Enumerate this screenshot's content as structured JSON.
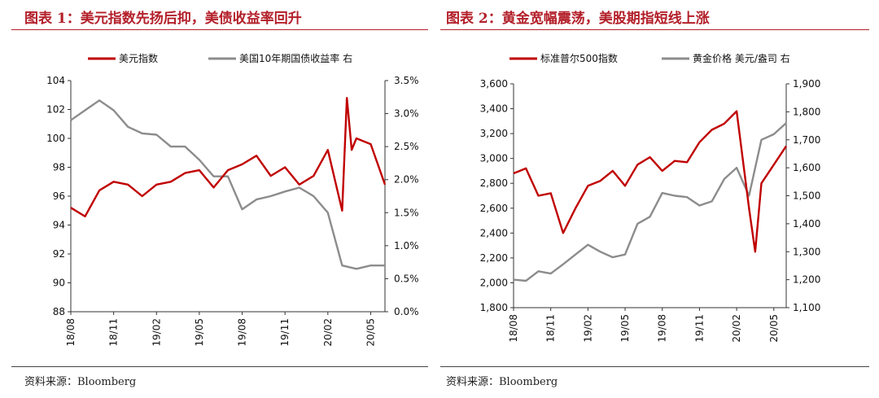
{
  "chart_data": [
    {
      "type": "line",
      "title": "图表 1：美元指数先扬后抑，美债收益率回升",
      "source": "资料来源：Bloomberg",
      "x_tick_labels": [
        "18/08",
        "18/11",
        "19/02",
        "19/05",
        "19/08",
        "19/11",
        "20/02",
        "20/05"
      ],
      "x_range": [
        "2018-08",
        "2020-06"
      ],
      "left_axis": {
        "ylim": [
          88,
          104
        ],
        "tick_labels": [
          "88",
          "90",
          "92",
          "94",
          "96",
          "98",
          "100",
          "102",
          "104"
        ]
      },
      "right_axis": {
        "ylim": [
          0,
          3.5
        ],
        "tick_labels": [
          "0.0%",
          "0.5%",
          "1.0%",
          "1.5%",
          "2.0%",
          "2.5%",
          "3.0%",
          "3.5%"
        ]
      },
      "legend_position": "top",
      "series": [
        {
          "name": "美元指数",
          "axis": "left",
          "color": "#c00000",
          "x": [
            "2018-08",
            "2018-09",
            "2018-10",
            "2018-11",
            "2018-12",
            "2019-01",
            "2019-02",
            "2019-03",
            "2019-04",
            "2019-05",
            "2019-06",
            "2019-07",
            "2019-08",
            "2019-09",
            "2019-10",
            "2019-11",
            "2019-12",
            "2020-01",
            "2020-02",
            "2020-03",
            "2020-03",
            "2020-03",
            "2020-04",
            "2020-05",
            "2020-06"
          ],
          "values": [
            95.2,
            94.6,
            96.4,
            97.0,
            96.8,
            96.0,
            96.8,
            97.0,
            97.6,
            97.8,
            96.6,
            97.8,
            98.2,
            98.8,
            97.4,
            98.0,
            96.8,
            97.4,
            99.2,
            95.0,
            102.8,
            99.2,
            100.0,
            99.6,
            96.8
          ]
        },
        {
          "name": "美国10年期国债收益率 右",
          "axis": "right",
          "color": "#8c8c8c",
          "x": [
            "2018-08",
            "2018-09",
            "2018-10",
            "2018-11",
            "2018-12",
            "2019-01",
            "2019-02",
            "2019-03",
            "2019-04",
            "2019-05",
            "2019-06",
            "2019-07",
            "2019-08",
            "2019-09",
            "2019-10",
            "2019-11",
            "2019-12",
            "2020-01",
            "2020-02",
            "2020-03",
            "2020-04",
            "2020-05",
            "2020-06"
          ],
          "values": [
            2.9,
            3.05,
            3.2,
            3.05,
            2.8,
            2.7,
            2.68,
            2.5,
            2.5,
            2.3,
            2.05,
            2.05,
            1.55,
            1.7,
            1.75,
            1.82,
            1.88,
            1.75,
            1.5,
            0.7,
            0.65,
            0.7,
            0.7
          ]
        }
      ]
    },
    {
      "type": "line",
      "title": "图表 2：黄金宽幅震荡，美股期指短线上涨",
      "source": "资料来源：Bloomberg",
      "x_tick_labels": [
        "18/08",
        "18/11",
        "19/02",
        "19/05",
        "19/08",
        "19/11",
        "20/02",
        "20/05"
      ],
      "x_range": [
        "2018-08",
        "2020-06"
      ],
      "left_axis": {
        "ylim": [
          1800,
          3600
        ],
        "tick_labels": [
          "1,800",
          "2,000",
          "2,200",
          "2,400",
          "2,600",
          "2,800",
          "3,000",
          "3,200",
          "3,400",
          "3,600"
        ]
      },
      "right_axis": {
        "ylim": [
          1100,
          1900
        ],
        "tick_labels": [
          "1,100",
          "1,200",
          "1,300",
          "1,400",
          "1,500",
          "1,600",
          "1,700",
          "1,800",
          "1,900"
        ]
      },
      "legend_position": "top",
      "series": [
        {
          "name": "标准普尔500指数",
          "axis": "left",
          "color": "#c00000",
          "x": [
            "2018-08",
            "2018-09",
            "2018-10",
            "2018-11",
            "2018-12",
            "2019-01",
            "2019-02",
            "2019-03",
            "2019-04",
            "2019-05",
            "2019-06",
            "2019-07",
            "2019-08",
            "2019-09",
            "2019-10",
            "2019-11",
            "2019-12",
            "2020-01",
            "2020-02",
            "2020-03",
            "2020-03",
            "2020-04",
            "2020-05",
            "2020-06"
          ],
          "values": [
            2880,
            2920,
            2700,
            2720,
            2400,
            2600,
            2780,
            2820,
            2900,
            2780,
            2950,
            3010,
            2900,
            2980,
            2970,
            3130,
            3230,
            3280,
            3380,
            2600,
            2250,
            2800,
            2950,
            3100
          ]
        },
        {
          "name": "黄金价格 美元/盎司 右",
          "axis": "right",
          "color": "#8c8c8c",
          "x": [
            "2018-08",
            "2018-09",
            "2018-10",
            "2018-11",
            "2018-12",
            "2019-01",
            "2019-02",
            "2019-03",
            "2019-04",
            "2019-05",
            "2019-06",
            "2019-07",
            "2019-08",
            "2019-09",
            "2019-10",
            "2019-11",
            "2019-12",
            "2020-01",
            "2020-02",
            "2020-03",
            "2020-04",
            "2020-05",
            "2020-06"
          ],
          "values": [
            1200,
            1196,
            1230,
            1222,
            1255,
            1290,
            1325,
            1300,
            1280,
            1290,
            1400,
            1425,
            1510,
            1500,
            1495,
            1465,
            1480,
            1560,
            1600,
            1500,
            1700,
            1720,
            1760
          ]
        }
      ]
    }
  ]
}
